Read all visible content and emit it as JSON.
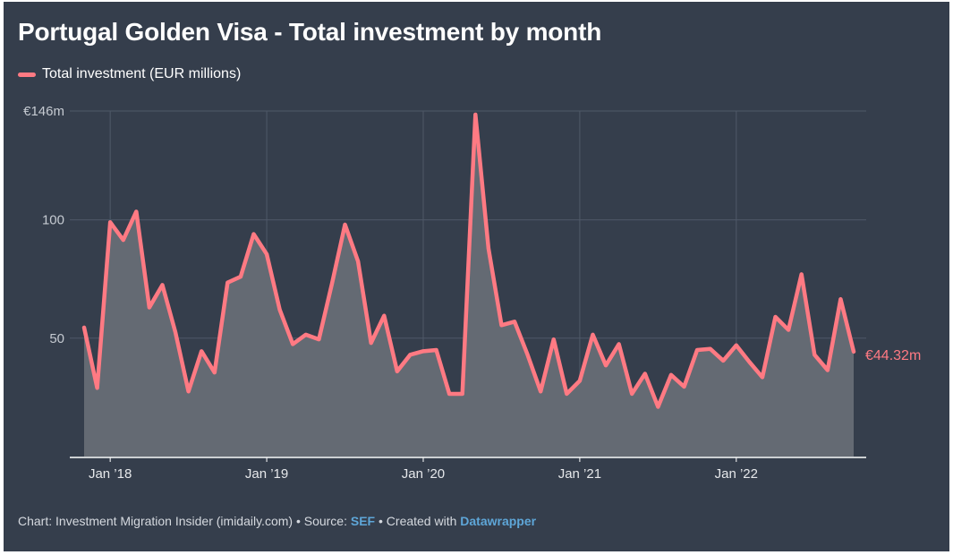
{
  "title": "Portugal Golden Visa - Total investment by month",
  "colors": {
    "background": "#353e4c",
    "line": "#ff7a83",
    "area": "#646a73",
    "grid": "#4f5968",
    "axis": "#ffffff",
    "tick_text": "#e6e8eb",
    "link": "#5ea6d8"
  },
  "footer": {
    "prefix": "Chart: Investment Migration Insider (imidaily.com) • Source: ",
    "source": "SEF",
    "middle": " • Created with ",
    "tool": "Datawrapper"
  },
  "chart_data": {
    "type": "area",
    "title": "Portugal Golden Visa - Total investment by month",
    "series": [
      {
        "name": "Total investment (EUR millions)",
        "start": "Nov 2017",
        "values": [
          54.5,
          29,
          99,
          91.5,
          103.5,
          63,
          72.5,
          52.5,
          27.5,
          44.5,
          35.5,
          73.5,
          76,
          94,
          85.5,
          62,
          47.5,
          51.5,
          49.5,
          73,
          98,
          82.5,
          48,
          59.5,
          36,
          43,
          44.5,
          45,
          26.5,
          26.5,
          144.5,
          88,
          55.5,
          57,
          43,
          27.5,
          49.5,
          26.5,
          32,
          51.5,
          38.5,
          47.5,
          26.5,
          35,
          21,
          34.5,
          29.5,
          45,
          45.5,
          40.5,
          47,
          40,
          33.5,
          59,
          53.5,
          77,
          43,
          36.5,
          66.5,
          44.32
        ]
      }
    ],
    "end_label": "€44.32m",
    "x_ticks": [
      "Jan ’18",
      "Jan ’19",
      "Jan ’20",
      "Jan ’21",
      "Jan ’22"
    ],
    "x_tick_index": [
      2,
      14,
      26,
      38,
      50
    ],
    "y_ticks": [
      {
        "value": 146,
        "label": "€146m"
      },
      {
        "value": 100,
        "label": "100"
      },
      {
        "value": 50,
        "label": "50"
      }
    ],
    "ylim": [
      0,
      146
    ],
    "xlabel": "",
    "ylabel": "",
    "grid": true,
    "legend": "top-left"
  }
}
